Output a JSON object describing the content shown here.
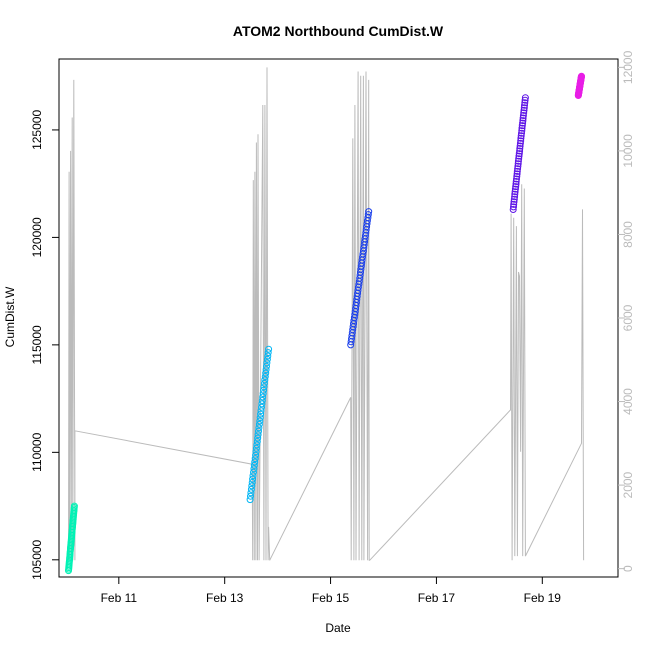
{
  "chart_data": {
    "type": "scatter",
    "title": "ATOM2 Northbound CumDist.W",
    "xlabel": "Date",
    "ylabel": "CumDist.W",
    "x_ticks": [
      {
        "label": "Feb 11",
        "value": 11
      },
      {
        "label": "Feb 13",
        "value": 13
      },
      {
        "label": "Feb 15",
        "value": 15
      },
      {
        "label": "Feb 17",
        "value": 17
      },
      {
        "label": "Feb 19",
        "value": 19
      }
    ],
    "xlim": [
      9.87,
      20.43
    ],
    "ylim": [
      104200,
      128300
    ],
    "y_ticks": [
      "105000",
      "110000",
      "115000",
      "120000",
      "125000"
    ],
    "y2lim": [
      -200,
      12200
    ],
    "y2_ticks": [
      "0",
      "2000",
      "4000",
      "6000",
      "8000",
      "10000",
      "12000"
    ],
    "y2_color": "#bbbbbb",
    "grid": false,
    "series": [
      {
        "color": "#00f2b5",
        "x0": 10.05,
        "x1": 10.16,
        "y0": 104500,
        "y1": 107500
      },
      {
        "color": "#00b6f5",
        "x0": 13.48,
        "x1": 13.83,
        "y0": 107800,
        "y1": 114800
      },
      {
        "color": "#1a3fea",
        "x0": 15.38,
        "x1": 15.72,
        "y0": 115000,
        "y1": 121200
      },
      {
        "color": "#5e14e6",
        "x0": 18.45,
        "x1": 18.68,
        "y0": 121300,
        "y1": 126500
      },
      {
        "color": "#e81ee6",
        "x0": 19.68,
        "x1": 19.74,
        "y0": 126600,
        "y1": 127500
      }
    ],
    "secondary_line": {
      "color": "#bbbbbb",
      "points": [
        [
          10.05,
          200
        ],
        [
          10.06,
          9500
        ],
        [
          10.07,
          200
        ],
        [
          10.09,
          10000
        ],
        [
          10.1,
          200
        ],
        [
          10.12,
          10800
        ],
        [
          10.13,
          200
        ],
        [
          10.15,
          11700
        ],
        [
          10.17,
          200
        ],
        [
          10.17,
          3300
        ],
        [
          13.52,
          2500
        ],
        [
          13.53,
          200
        ],
        [
          13.54,
          9300
        ],
        [
          13.56,
          200
        ],
        [
          13.57,
          9500
        ],
        [
          13.59,
          200
        ],
        [
          13.6,
          10200
        ],
        [
          13.62,
          200
        ],
        [
          13.63,
          10400
        ],
        [
          13.65,
          200
        ],
        [
          13.72,
          11100
        ],
        [
          13.74,
          200
        ],
        [
          13.76,
          11100
        ],
        [
          13.78,
          200
        ],
        [
          13.8,
          12000
        ],
        [
          13.82,
          200
        ],
        [
          13.83,
          1000
        ],
        [
          13.85,
          200
        ],
        [
          15.38,
          4100
        ],
        [
          15.39,
          200
        ],
        [
          15.42,
          10300
        ],
        [
          15.44,
          200
        ],
        [
          15.46,
          11100
        ],
        [
          15.48,
          200
        ],
        [
          15.52,
          11900
        ],
        [
          15.54,
          200
        ],
        [
          15.57,
          11800
        ],
        [
          15.59,
          200
        ],
        [
          15.62,
          11800
        ],
        [
          15.63,
          200
        ],
        [
          15.67,
          11900
        ],
        [
          15.7,
          200
        ],
        [
          15.72,
          11700
        ],
        [
          15.73,
          200
        ],
        [
          15.74,
          200
        ],
        [
          18.4,
          3800
        ],
        [
          18.41,
          8500
        ],
        [
          18.43,
          200
        ],
        [
          18.46,
          8400
        ],
        [
          18.48,
          300
        ],
        [
          18.51,
          8200
        ],
        [
          18.53,
          300
        ],
        [
          18.55,
          7100
        ],
        [
          18.57,
          7000
        ],
        [
          18.59,
          2800
        ],
        [
          18.61,
          9200
        ],
        [
          18.63,
          300
        ],
        [
          18.66,
          9100
        ],
        [
          18.68,
          300
        ],
        [
          19.74,
          3000
        ],
        [
          19.76,
          8600
        ],
        [
          19.78,
          200
        ]
      ]
    }
  }
}
